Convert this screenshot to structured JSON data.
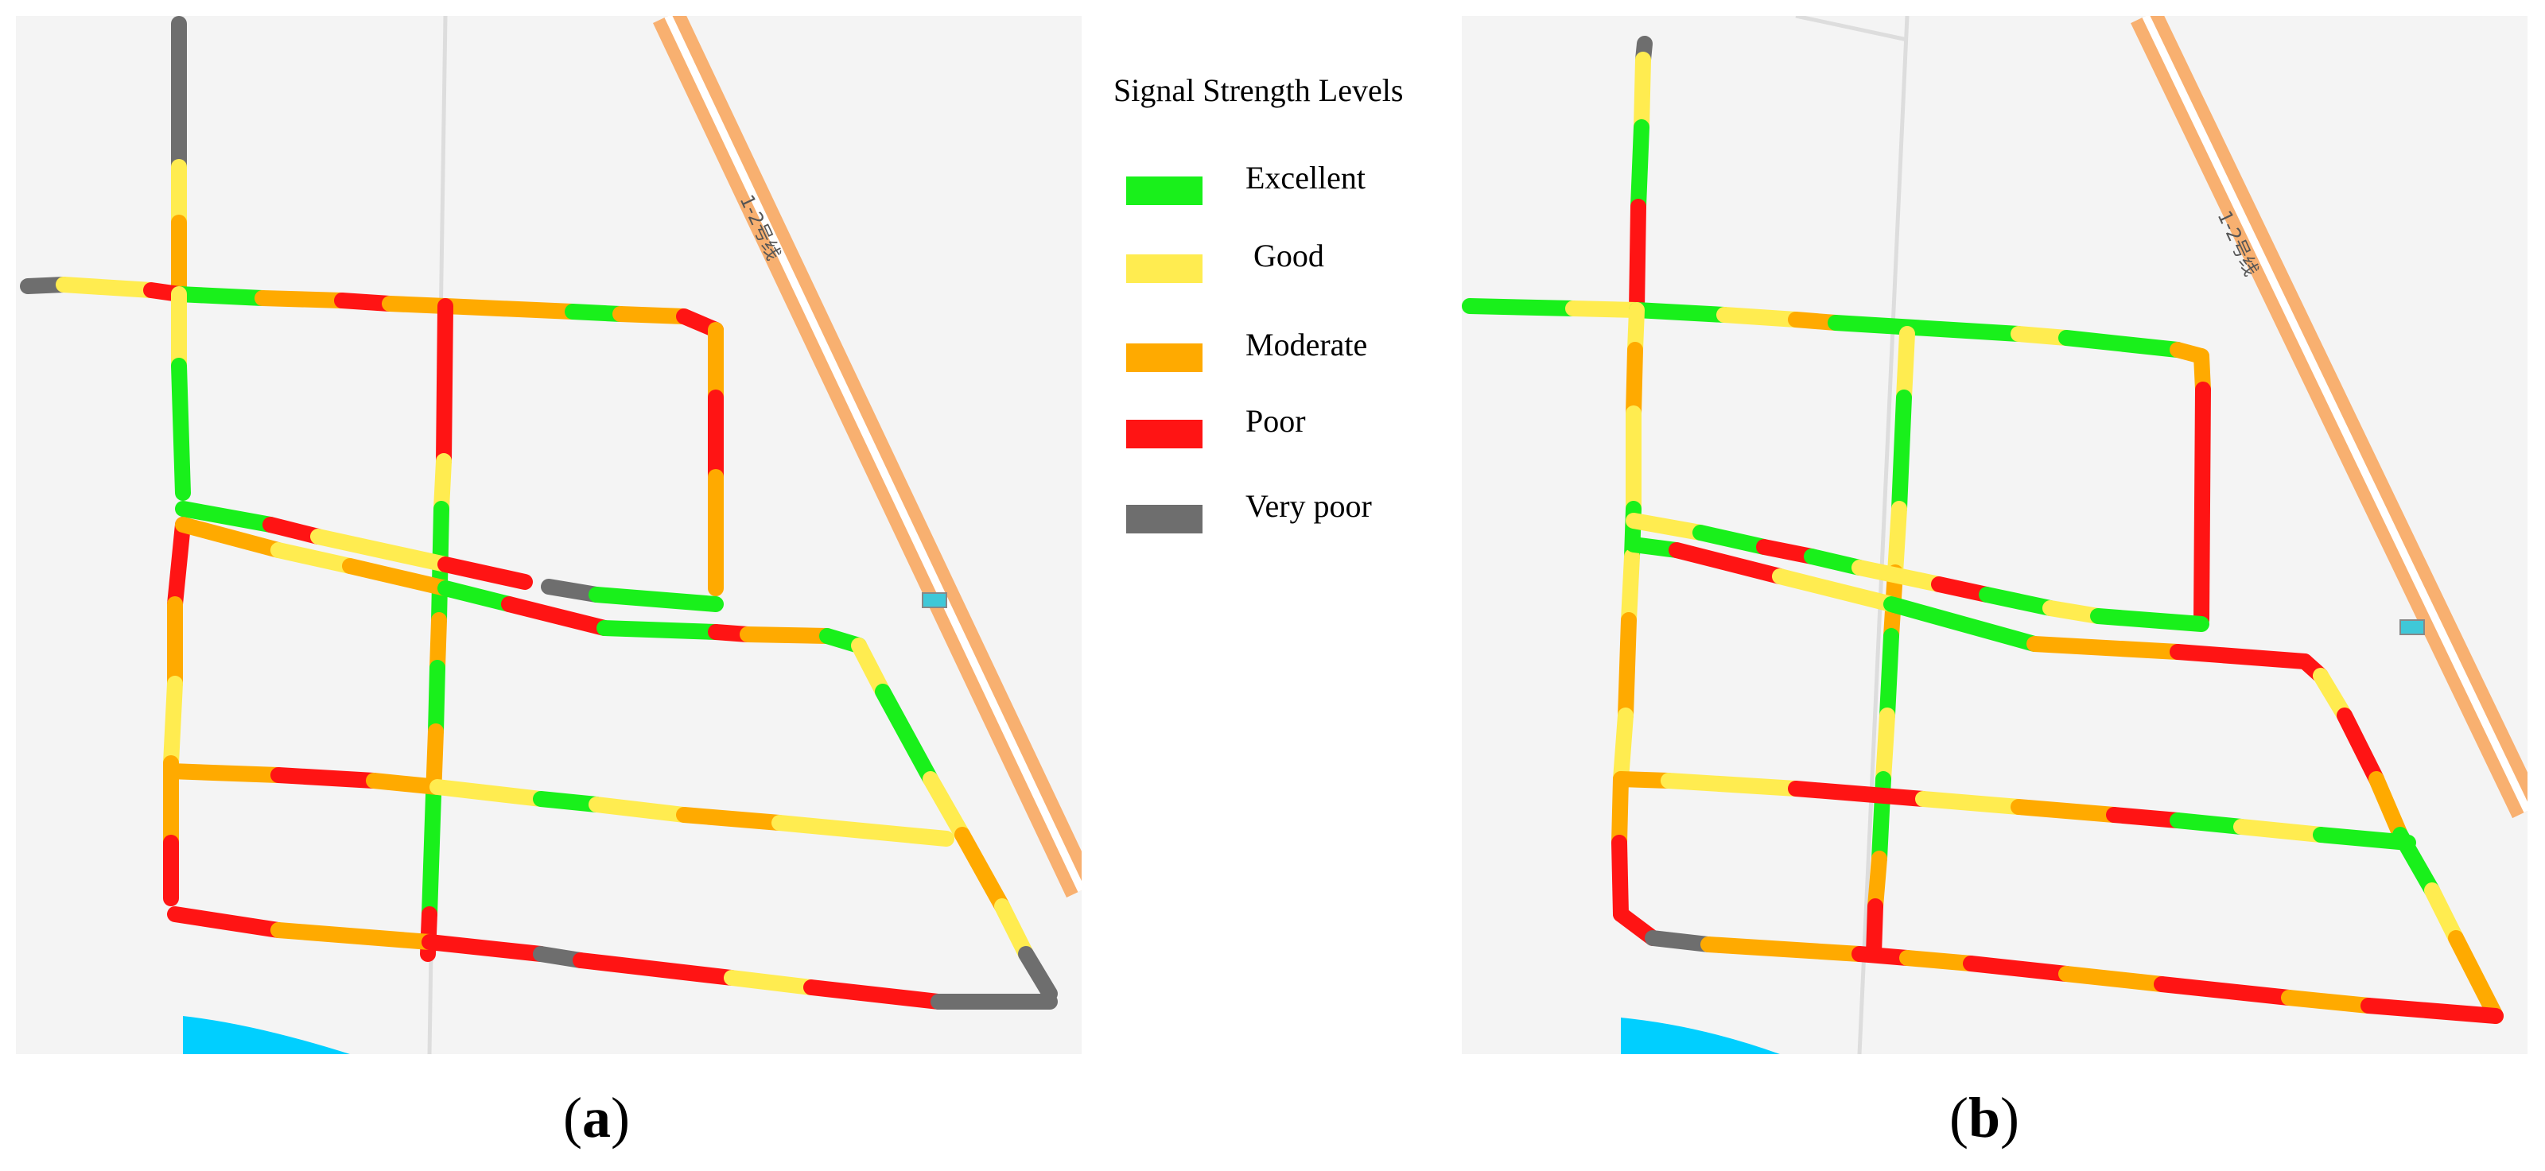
{
  "legend": {
    "title": "Signal Strength Levels",
    "levels": [
      {
        "label": "Excellent",
        "color": "#19f01b"
      },
      {
        "label": "Good",
        "color": "#ffec50"
      },
      {
        "label": "Moderate",
        "color": "#ffaa00"
      },
      {
        "label": "Poor",
        "color": "#ff1414"
      },
      {
        "label": "Very poor",
        "color": "#6e6e6e"
      }
    ]
  },
  "captions": {
    "a": {
      "open": "(",
      "letter": "a",
      "close": ")"
    },
    "b": {
      "open": "(",
      "letter": "b",
      "close": ")"
    }
  },
  "map": {
    "highway_label": "1-2号线",
    "colors": {
      "background": "#f4f4f4",
      "highway": "#f8b070",
      "river": "#00cfff",
      "minor_road": "#dddddd",
      "sign": "#3fc8d8"
    }
  }
}
